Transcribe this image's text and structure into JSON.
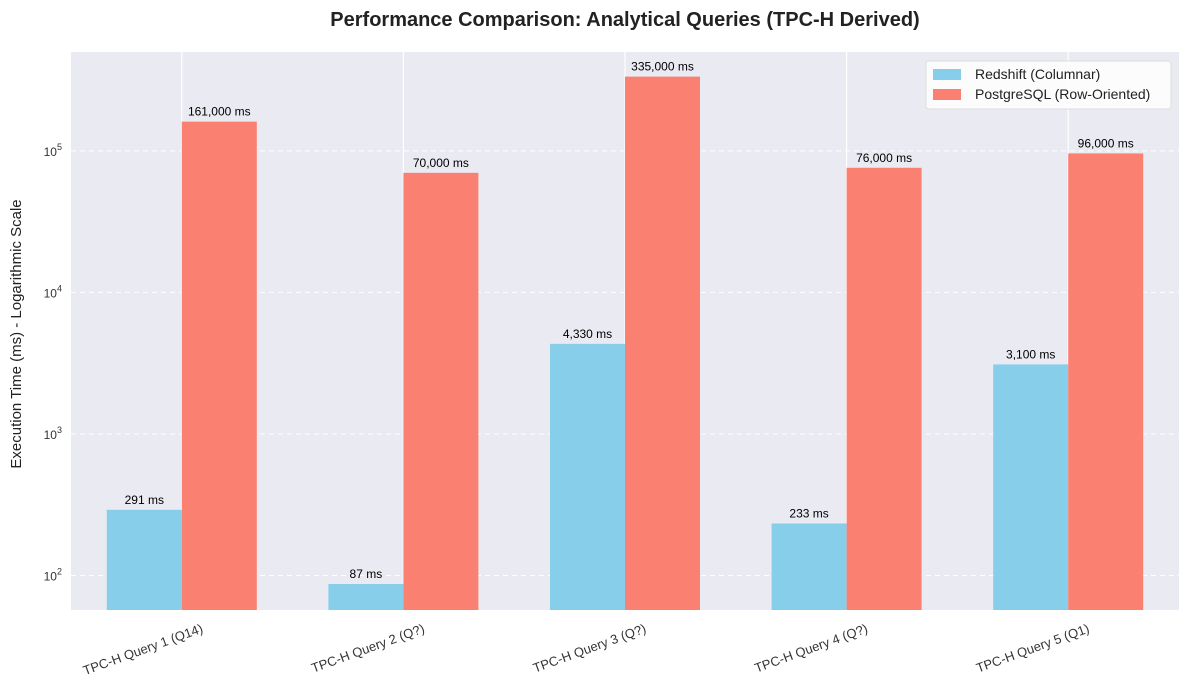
{
  "chart_data": {
    "type": "bar",
    "title": "Performance Comparison: Analytical Queries (TPC-H Derived)",
    "xlabel": "",
    "ylabel": "Execution Time (ms) - Logarithmic Scale",
    "yscale": "log",
    "ylim": [
      57,
      500000
    ],
    "yticks": [
      100,
      1000,
      10000,
      100000
    ],
    "ytick_labels": [
      {
        "base": "10",
        "exp": "2"
      },
      {
        "base": "10",
        "exp": "3"
      },
      {
        "base": "10",
        "exp": "4"
      },
      {
        "base": "10",
        "exp": "5"
      }
    ],
    "categories": [
      "TPC-H Query 1 (Q14)",
      "TPC-H Query 2 (Q?)",
      "TPC-H Query 3 (Q?)",
      "TPC-H Query 4 (Q?)",
      "TPC-H Query 5 (Q1)"
    ],
    "series": [
      {
        "name": "Redshift (Columnar)",
        "color": "#87ceeb",
        "values": [
          291,
          87,
          4330,
          233,
          3100
        ],
        "labels": [
          "291 ms",
          "87 ms",
          "4,330 ms",
          "233 ms",
          "3,100 ms"
        ]
      },
      {
        "name": "PostgreSQL (Row-Oriented)",
        "color": "#fa8072",
        "values": [
          161000,
          70000,
          335000,
          76000,
          96000
        ],
        "labels": [
          "161,000 ms",
          "70,000 ms",
          "335,000 ms",
          "76,000 ms",
          "96,000 ms"
        ]
      }
    ],
    "grid": true,
    "legend": "top-right",
    "background": "#eaeaf2"
  }
}
